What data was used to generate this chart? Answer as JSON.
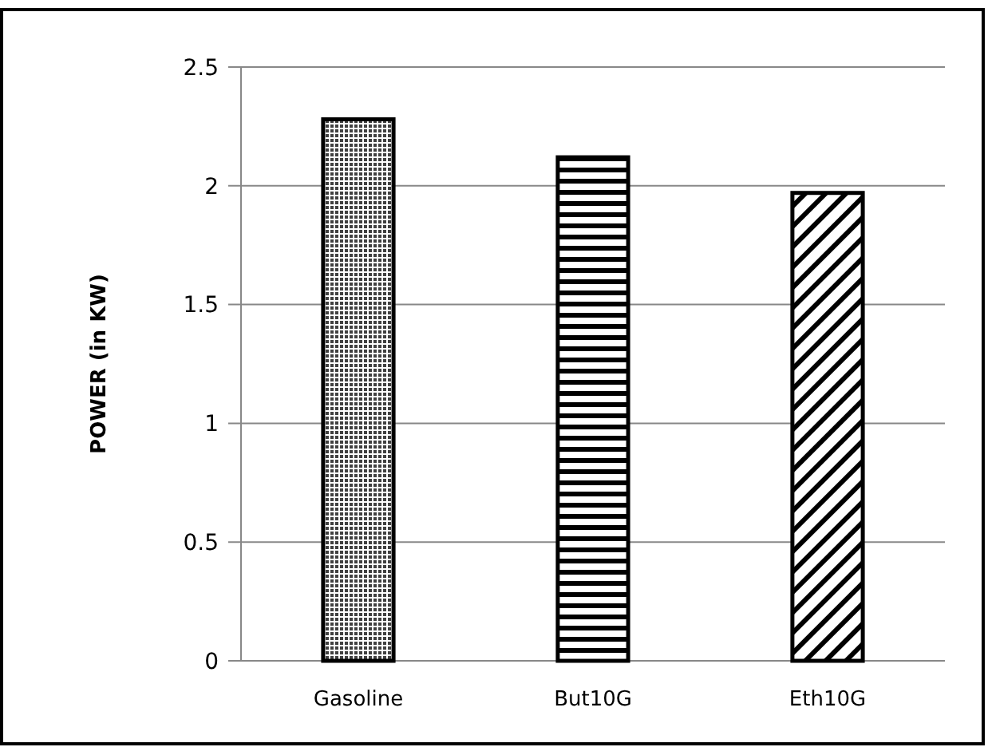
{
  "chart_data": {
    "type": "bar",
    "ylabel": "POWER (in KW)",
    "categories": [
      "Gasoline",
      "But10G",
      "Eth10G"
    ],
    "values": [
      2.28,
      2.12,
      1.97
    ],
    "color": "#000000",
    "ylim": [
      0,
      2.5
    ],
    "yticks": [
      0,
      0.5,
      1,
      1.5,
      2,
      2.5
    ],
    "grid": "y"
  }
}
